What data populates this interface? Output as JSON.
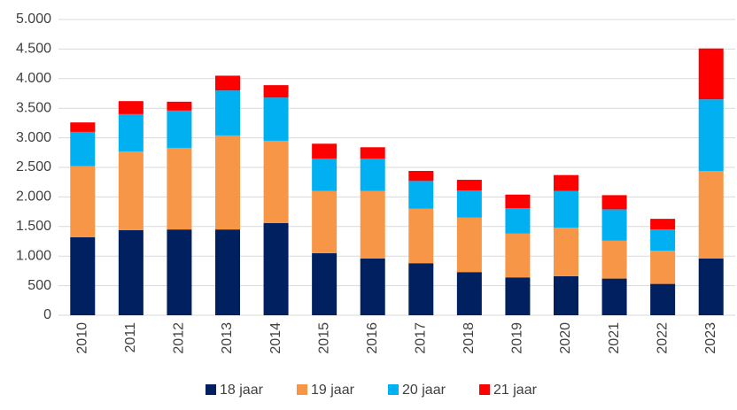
{
  "chart_data": {
    "type": "stacked_bar",
    "categories": [
      "2010",
      "2011",
      "2012",
      "2013",
      "2014",
      "2015",
      "2016",
      "2017",
      "2018",
      "2019",
      "2020",
      "2021",
      "2022",
      "2023"
    ],
    "series": [
      {
        "name": "18 jaar",
        "color": "#002060",
        "values": [
          1320,
          1440,
          1450,
          1450,
          1560,
          1050,
          960,
          880,
          730,
          640,
          660,
          620,
          530,
          960
        ]
      },
      {
        "name": "19 jaar",
        "color": "#f79646",
        "values": [
          1200,
          1330,
          1380,
          1590,
          1390,
          1050,
          1140,
          920,
          920,
          740,
          820,
          640,
          560,
          1480
        ]
      },
      {
        "name": "20 jaar",
        "color": "#00b0f0",
        "values": [
          580,
          630,
          630,
          760,
          730,
          550,
          550,
          470,
          460,
          430,
          620,
          530,
          360,
          1210
        ]
      },
      {
        "name": "21 jaar",
        "color": "#ff0000",
        "values": [
          160,
          220,
          150,
          250,
          210,
          250,
          190,
          170,
          180,
          230,
          270,
          240,
          180,
          860
        ]
      }
    ],
    "ylim": [
      0,
      5000
    ],
    "yticks": [
      0,
      500,
      {
        "value": 1000,
        "label": "1.000"
      },
      {
        "value": 1500,
        "label": "1.500"
      },
      {
        "value": 2000,
        "label": "2.000"
      },
      {
        "value": 2500,
        "label": "2.500"
      },
      {
        "value": 3000,
        "label": "3.000"
      },
      {
        "value": 3500,
        "label": "3.500"
      },
      {
        "value": 4000,
        "label": "4.000"
      },
      {
        "value": 4500,
        "label": "4.500"
      },
      {
        "value": 5000,
        "label": "5.000"
      }
    ],
    "grid": true,
    "legend": "bottom"
  }
}
